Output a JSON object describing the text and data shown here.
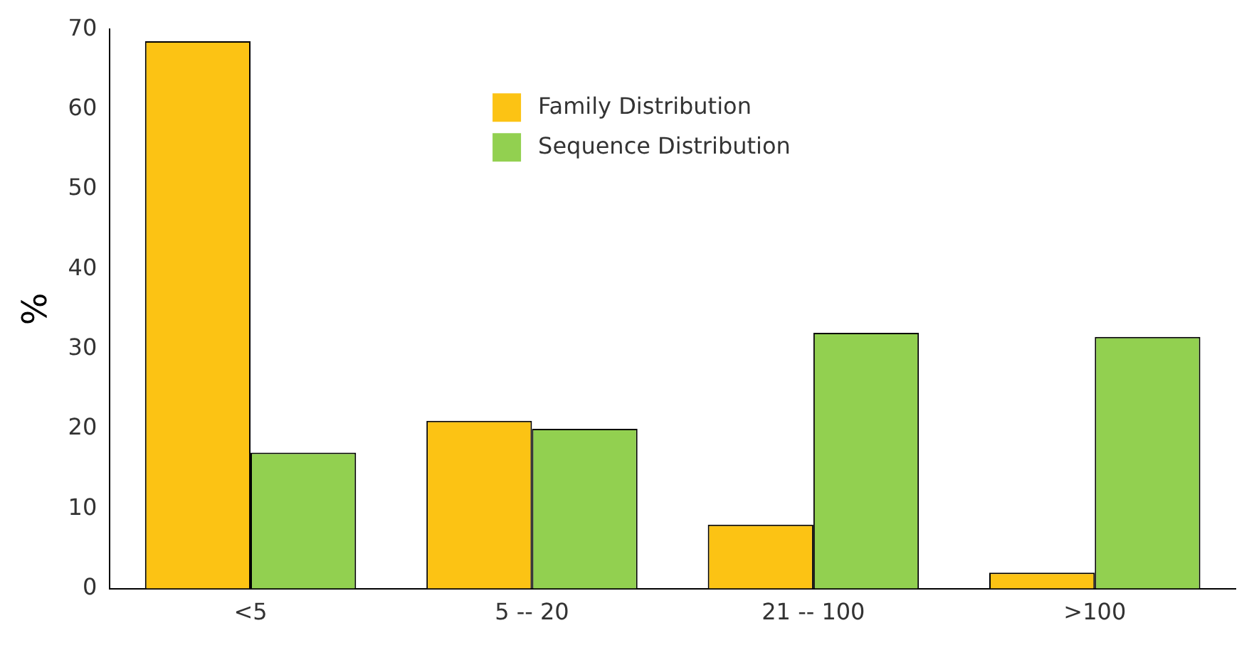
{
  "chart_data": {
    "type": "bar",
    "ylabel": "%",
    "categories": [
      "<5",
      "5 -- 20",
      "21 -- 100",
      ">100"
    ],
    "series": [
      {
        "name": "Family Distribution",
        "color": "#fcc314",
        "values": [
          68.5,
          21,
          8,
          2
        ]
      },
      {
        "name": "Sequence Distribution",
        "color": "#92d050",
        "values": [
          17,
          20,
          32,
          31.5
        ]
      }
    ],
    "ylim": [
      0,
      70
    ],
    "yticks": [
      0,
      10,
      20,
      30,
      40,
      50,
      60,
      70
    ],
    "grid": false,
    "legend": "top"
  }
}
